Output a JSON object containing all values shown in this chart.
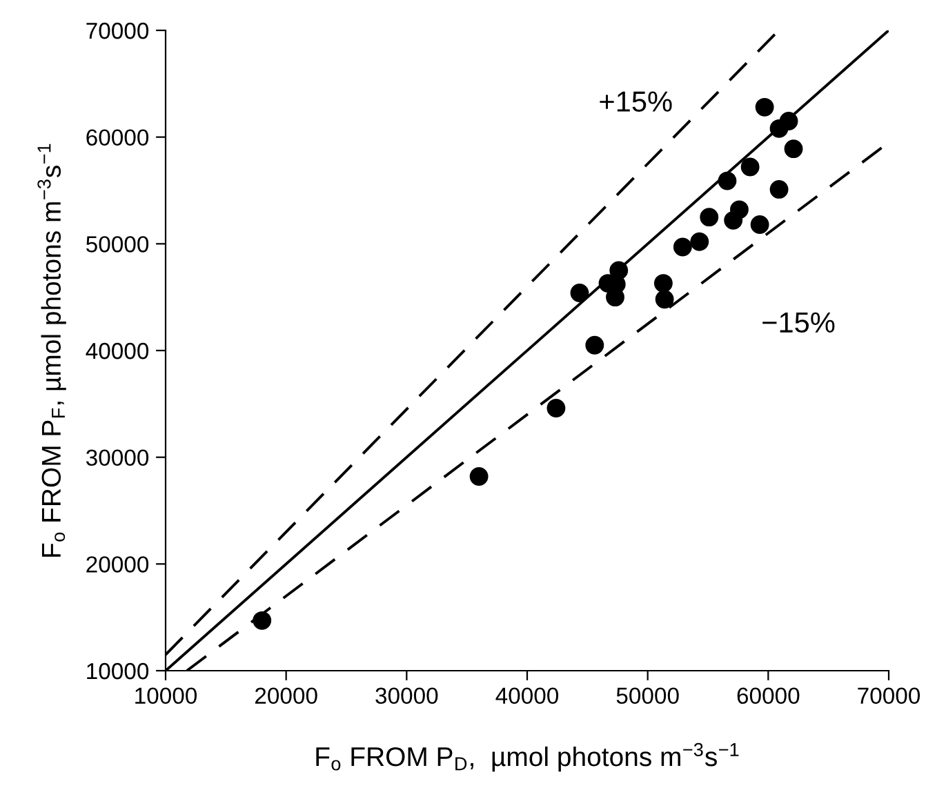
{
  "chart_data": {
    "type": "scatter",
    "xlabel": "F$_{o}$ FROM P$_{D}$,  µmol photons m$^{−3}$s$^{−1}$",
    "ylabel": "F$_{o}$ FROM P$_{F}$, µmol photons m$^{−3}$s$^{−1}$",
    "xlim": [
      10000,
      70000
    ],
    "ylim": [
      10000,
      70000
    ],
    "xticks": [
      10000,
      20000,
      30000,
      40000,
      50000,
      60000,
      70000
    ],
    "yticks": [
      10000,
      20000,
      30000,
      40000,
      50000,
      60000,
      70000
    ],
    "grid": false,
    "marker": "circle",
    "annotations": [
      "+15%",
      "−15%"
    ],
    "series": [
      {
        "color": "#000000",
        "x": [
          18000,
          36000,
          42400,
          45600,
          44350,
          46700,
          47400,
          47300,
          47600,
          51300,
          51400,
          52900,
          54300,
          55100,
          57100,
          57600,
          59300,
          56600,
          60900,
          58500,
          62100,
          60900,
          61700,
          59700
        ],
        "values": [
          14700,
          28200,
          34600,
          40500,
          45400,
          46300,
          46200,
          45000,
          47500,
          46300,
          44800,
          49700,
          50200,
          52500,
          52200,
          53200,
          51800,
          55900,
          55100,
          57200,
          58900,
          60800,
          61500,
          62800
        ]
      },
      {
        "type": "line",
        "color": "#000000",
        "line_style": "solid",
        "marker": "none",
        "x": [
          10000,
          70000
        ],
        "values": [
          10000,
          70000
        ]
      },
      {
        "type": "line",
        "color": "#000000",
        "line_style": "dashed",
        "marker": "none",
        "x": [
          10000,
          60870
        ],
        "values": [
          11500,
          70000
        ]
      },
      {
        "type": "line",
        "color": "#000000",
        "line_style": "dashed",
        "marker": "none",
        "x": [
          11765,
          70000
        ],
        "values": [
          10000,
          59500
        ]
      }
    ]
  }
}
